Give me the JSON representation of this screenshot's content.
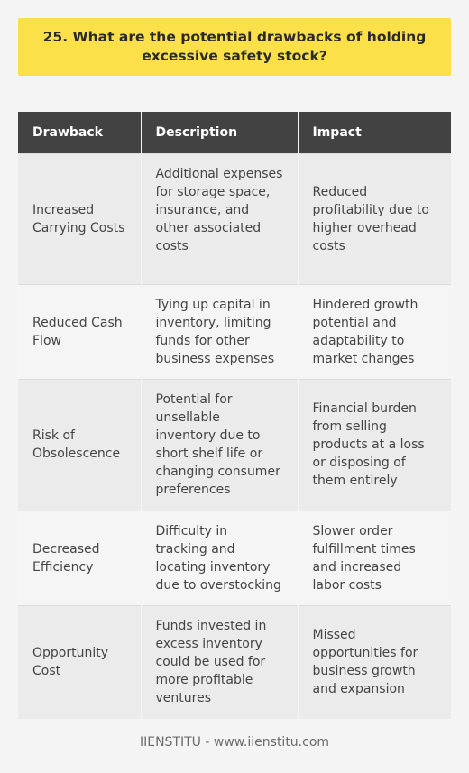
{
  "title": "25. What are the potential drawbacks of holding excessive safety stock?",
  "table": {
    "headers": [
      "Drawback",
      "Description",
      "Impact"
    ],
    "rows": [
      {
        "drawback": "Increased Carrying Costs",
        "description": "Additional expenses for storage space, insurance, and other associated costs",
        "impact": "Reduced profitability due to higher overhead costs"
      },
      {
        "drawback": "Reduced Cash Flow",
        "description": "Tying up capital in inventory, limiting funds for other business expenses",
        "impact": "Hindered growth potential and adaptability to market changes"
      },
      {
        "drawback": "Risk of Obsolescence",
        "description": "Potential for unsellable inventory due to short shelf life or changing consumer preferences",
        "impact": "Financial burden from selling products at a loss or disposing of them entirely"
      },
      {
        "drawback": "Decreased Efficiency",
        "description": "Difficulty in tracking and locating inventory due to overstocking",
        "impact": "Slower order fulfillment times and increased labor costs"
      },
      {
        "drawback": "Opportunity Cost",
        "description": "Funds invested in excess inventory could be used for more profitable ventures",
        "impact": "Missed opportunities for business growth and expansion"
      }
    ]
  },
  "footer": "IIENSTITU - www.iienstitu.com",
  "colors": {
    "title_background": "#fce049",
    "header_background": "#424242",
    "row_odd": "#ebebeb",
    "row_even": "#f5f5f5",
    "page_background": "#f4f4f4"
  }
}
